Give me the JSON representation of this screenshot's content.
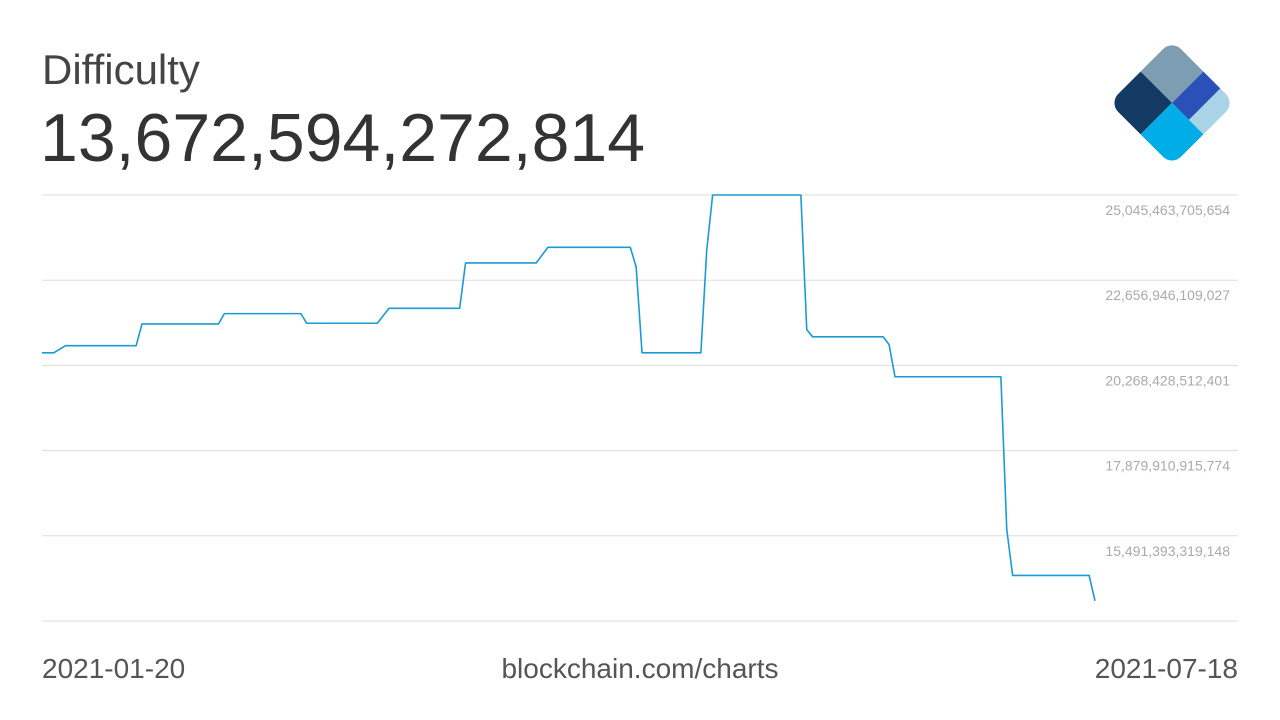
{
  "chart_data": {
    "type": "line",
    "title": "Difficulty",
    "current_value": "13,672,594,272,814",
    "source": "blockchain.com/charts",
    "x": [
      "2021-01-20",
      "2021-01-22",
      "2021-01-24",
      "2021-02-05",
      "2021-02-06",
      "2021-02-19",
      "2021-02-20",
      "2021-03-05",
      "2021-03-06",
      "2021-03-18",
      "2021-03-20",
      "2021-04-01",
      "2021-04-02",
      "2021-04-14",
      "2021-04-16",
      "2021-04-30",
      "2021-05-01",
      "2021-05-02",
      "2021-05-12",
      "2021-05-13",
      "2021-05-14",
      "2021-05-29",
      "2021-05-30",
      "2021-05-31",
      "2021-06-12",
      "2021-06-13",
      "2021-06-14",
      "2021-07-02",
      "2021-07-03",
      "2021-07-04",
      "2021-07-17",
      "2021-07-18"
    ],
    "values": [
      20620000000000,
      20620000000000,
      20820000000000,
      20820000000000,
      21430000000000,
      21430000000000,
      21720000000000,
      21720000000000,
      21450000000000,
      21450000000000,
      21870000000000,
      21870000000000,
      23140000000000,
      23140000000000,
      23580000000000,
      23580000000000,
      23030000000000,
      20620000000000,
      20620000000000,
      23500000000000,
      25045463705654,
      25045463705654,
      21270000000000,
      21070000000000,
      21070000000000,
      20850000000000,
      19950000000000,
      19950000000000,
      15670000000000,
      14380000000000,
      14380000000000,
      13670000000000
    ],
    "color": "#1b9ad6",
    "ylim": [
      13102875722521,
      25045463705654
    ],
    "yticks": [
      {
        "value": 25045463705654,
        "label": "25,045,463,705,654"
      },
      {
        "value": 22656946109027,
        "label": "22,656,946,109,027"
      },
      {
        "value": 20268428512401,
        "label": "20,268,428,512,401"
      },
      {
        "value": 17879910915774,
        "label": "17,879,910,915,774"
      },
      {
        "value": 15491393319148,
        "label": "15,491,393,319,148"
      }
    ],
    "grid": true
  }
}
